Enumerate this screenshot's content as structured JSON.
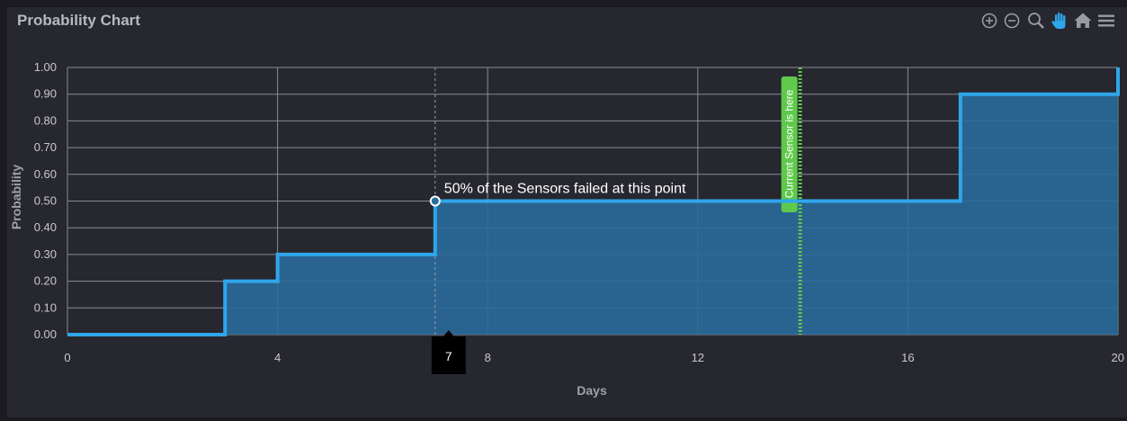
{
  "window": {
    "title": "Probability Chart"
  },
  "toolbar": {
    "tools": [
      {
        "name": "zoom-in-icon",
        "active": false
      },
      {
        "name": "zoom-out-icon",
        "active": false
      },
      {
        "name": "magnifier-icon",
        "active": false
      },
      {
        "name": "pan-hand-icon",
        "active": true
      },
      {
        "name": "home-reset-icon",
        "active": false
      },
      {
        "name": "menu-icon",
        "active": false
      }
    ]
  },
  "colors": {
    "series": "#2fa6ea",
    "fill": "#2a6c9b",
    "marker_line": "#5fc94c",
    "grid": "#8a8a92"
  },
  "chart_data": {
    "type": "area",
    "step": true,
    "xlabel": "Days",
    "ylabel": "Probability",
    "xlim": [
      0,
      20
    ],
    "ylim": [
      0,
      1
    ],
    "x_ticks": [
      0,
      4,
      8,
      12,
      16,
      20
    ],
    "y_ticks": [
      "0.00",
      "0.10",
      "0.20",
      "0.30",
      "0.40",
      "0.50",
      "0.60",
      "0.70",
      "0.80",
      "0.90",
      "1.00"
    ],
    "y_tick_values": [
      0,
      0.1,
      0.2,
      0.3,
      0.4,
      0.5,
      0.6,
      0.7,
      0.8,
      0.9,
      1.0
    ],
    "points": [
      {
        "x": 0,
        "y": 0
      },
      {
        "x": 3,
        "y": 0.2
      },
      {
        "x": 4,
        "y": 0.3
      },
      {
        "x": 7,
        "y": 0.5
      },
      {
        "x": 17,
        "y": 0.9
      },
      {
        "x": 20,
        "y": 1.0
      }
    ],
    "grid": true,
    "annotations": [
      {
        "type": "point",
        "x": 7,
        "y": 0.5,
        "text": "50% of the Sensors failed at this point"
      },
      {
        "type": "vline",
        "x": 14,
        "text": "Current Sensor is here"
      }
    ],
    "crosshair": {
      "x": 7,
      "label": "7"
    }
  }
}
